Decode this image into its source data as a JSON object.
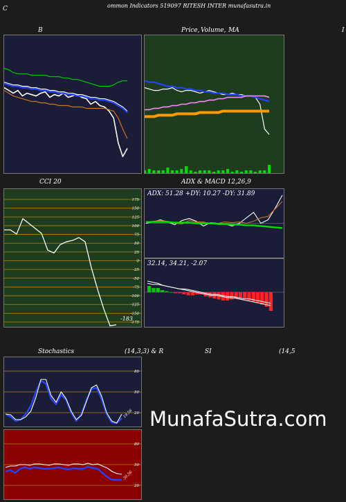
{
  "header": {
    "left_letter": "C",
    "title": "ommon  Indicators 519097 RITESH INTER munafasutra.in"
  },
  "labels": {
    "bb": "B",
    "price": "Price,",
    "volume": "Volume,",
    "ma": "MA",
    "edge": "I",
    "cci": "CCI 20",
    "adx_macd": "ADX  & MACD 12,26,9",
    "stoch": "Stochastics",
    "stoch_params": "(14,3,3) & R",
    "rsi": "SI",
    "rsi_params": "(14,5"
  },
  "adx_readout": "ADX: 51.28  +DY: 10.27 -DY: 31.89",
  "macd_readout": "32.14,  34.21,  -2.07",
  "watermark": "MunafaSutra.com",
  "colors": {
    "bg": "#1c1c1c",
    "navy": "#1a1c38",
    "green_panel": "#1e3c1e",
    "red_panel": "#8b0000",
    "grid": "#b8860b"
  },
  "chart_data": [
    {
      "id": "bollinger",
      "type": "line",
      "title": "B",
      "series": [
        {
          "color": "#ffffff",
          "values": [
            0.62,
            0.6,
            0.58,
            0.6,
            0.56,
            0.58,
            0.57,
            0.56,
            0.58,
            0.59,
            0.55,
            0.57,
            0.56,
            0.58,
            0.55,
            0.56,
            0.57,
            0.55,
            0.54,
            0.5,
            0.52,
            0.49,
            0.48,
            0.45,
            0.4,
            0.22,
            0.12,
            0.18
          ]
        },
        {
          "color": "#00cc00",
          "values": [
            0.76,
            0.75,
            0.73,
            0.72,
            0.72,
            0.72,
            0.71,
            0.71,
            0.71,
            0.71,
            0.7,
            0.7,
            0.7,
            0.69,
            0.69,
            0.68,
            0.68,
            0.67,
            0.66,
            0.65,
            0.64,
            0.63,
            0.63,
            0.63,
            0.64,
            0.66,
            0.67,
            0.67
          ]
        },
        {
          "color": "#ffffff",
          "values": [
            0.66,
            0.65,
            0.64,
            0.64,
            0.63,
            0.63,
            0.62,
            0.62,
            0.61,
            0.61,
            0.6,
            0.6,
            0.59,
            0.59,
            0.58,
            0.58,
            0.57,
            0.57,
            0.56,
            0.55,
            0.55,
            0.54,
            0.54,
            0.53,
            0.52,
            0.5,
            0.48,
            0.45
          ]
        },
        {
          "color": "#2244ff",
          "values": [
            0.65,
            0.64,
            0.63,
            0.63,
            0.62,
            0.62,
            0.61,
            0.61,
            0.6,
            0.6,
            0.59,
            0.59,
            0.58,
            0.58,
            0.57,
            0.57,
            0.56,
            0.56,
            0.55,
            0.54,
            0.54,
            0.53,
            0.53,
            0.52,
            0.51,
            0.49,
            0.47,
            0.44
          ]
        },
        {
          "color": "#cc7722",
          "values": [
            0.6,
            0.58,
            0.56,
            0.55,
            0.54,
            0.53,
            0.52,
            0.52,
            0.51,
            0.51,
            0.5,
            0.5,
            0.49,
            0.49,
            0.49,
            0.48,
            0.48,
            0.48,
            0.47,
            0.47,
            0.47,
            0.47,
            0.47,
            0.46,
            0.45,
            0.4,
            0.32,
            0.25
          ]
        }
      ]
    },
    {
      "id": "price_ma",
      "type": "line",
      "title": "Price, Volume, MA",
      "series": [
        {
          "color": "#ffffff",
          "values": [
            0.62,
            0.61,
            0.6,
            0.6,
            0.61,
            0.61,
            0.62,
            0.6,
            0.59,
            0.6,
            0.6,
            0.59,
            0.58,
            0.59,
            0.6,
            0.59,
            0.58,
            0.57,
            0.57,
            0.58,
            0.57,
            0.57,
            0.56,
            0.56,
            0.55,
            0.5,
            0.32,
            0.28
          ]
        },
        {
          "color": "#2244ff",
          "values": [
            0.67,
            0.66,
            0.66,
            0.65,
            0.64,
            0.63,
            0.63,
            0.62,
            0.62,
            0.61,
            0.61,
            0.6,
            0.6,
            0.59,
            0.59,
            0.58,
            0.58,
            0.58,
            0.57,
            0.57,
            0.57,
            0.56,
            0.56,
            0.56,
            0.55,
            0.54,
            0.53,
            0.52
          ]
        },
        {
          "color": "#ff88ff",
          "values": [
            0.46,
            0.46,
            0.47,
            0.47,
            0.48,
            0.48,
            0.49,
            0.49,
            0.5,
            0.5,
            0.51,
            0.51,
            0.52,
            0.52,
            0.53,
            0.53,
            0.54,
            0.54,
            0.55,
            0.55,
            0.55,
            0.55,
            0.56,
            0.56,
            0.56,
            0.56,
            0.56,
            0.55
          ]
        },
        {
          "color": "#ff9900",
          "values": [
            0.41,
            0.41,
            0.41,
            0.42,
            0.42,
            0.42,
            0.42,
            0.43,
            0.43,
            0.43,
            0.43,
            0.43,
            0.44,
            0.44,
            0.44,
            0.44,
            0.44,
            0.45,
            0.45,
            0.45,
            0.45,
            0.45,
            0.45,
            0.45,
            0.45,
            0.45,
            0.45,
            0.45
          ]
        }
      ],
      "volume": [
        0.02,
        0.03,
        0.02,
        0.02,
        0.02,
        0.04,
        0.02,
        0.02,
        0.03,
        0.05,
        0.02,
        0.01,
        0.02,
        0.02,
        0.02,
        0.01,
        0.02,
        0.02,
        0.03,
        0.01,
        0.02,
        0.01,
        0.02,
        0.02,
        0.01,
        0.02,
        0.02,
        0.06
      ]
    },
    {
      "id": "cci",
      "type": "line",
      "title": "CCI 20",
      "ylim": [
        -175,
        175
      ],
      "yticks": [
        175,
        150,
        125,
        100,
        75,
        50,
        25,
        0,
        -25,
        -50,
        -75,
        -100,
        -125,
        -150,
        -175
      ],
      "values": [
        88,
        88,
        76,
        120,
        106,
        92,
        78,
        30,
        22,
        46,
        54,
        58,
        66,
        54,
        -20,
        -82,
        -138,
        -186,
        -183
      ],
      "last_label": "-183"
    },
    {
      "id": "adx",
      "type": "line",
      "title": "ADX",
      "readout": "ADX: 51.28  +DY: 10.27 -DY: 31.89",
      "series": [
        {
          "name": "ADX",
          "color": "#ffffff",
          "values": [
            50,
            52,
            55,
            52,
            48,
            54,
            57,
            53,
            46,
            51,
            50,
            49,
            46,
            50,
            58,
            66,
            50,
            55,
            72,
            91
          ]
        },
        {
          "name": "+DY",
          "color": "#cc7722",
          "values": [
            52,
            53,
            54,
            53,
            50,
            49,
            54,
            52,
            52,
            49,
            50,
            52,
            51,
            52,
            50,
            53,
            58,
            60,
            71,
            82
          ]
        },
        {
          "name": "-DY",
          "color": "#00dd00",
          "values": [
            52,
            52,
            52,
            52,
            51,
            51,
            51,
            50,
            50,
            50,
            49,
            49,
            48,
            48,
            47,
            47,
            46,
            45,
            44,
            43
          ]
        }
      ]
    },
    {
      "id": "macd",
      "type": "bar",
      "title": "MACD 12,26,9",
      "readout": "32.14,  34.21,  -2.07",
      "hist": [
        3,
        2,
        2,
        1,
        0.5,
        0,
        -0.5,
        -0.5,
        -1,
        -1.5,
        -1.5,
        -1,
        -1,
        -2,
        -2.5,
        -3,
        -3.5,
        -4,
        -4,
        -3.5,
        -3,
        -3,
        -3.5,
        -4,
        -4.5,
        -5,
        -6,
        -7,
        -9
      ],
      "lines": [
        {
          "color": "#ffffff",
          "values": [
            10,
            9,
            8,
            6,
            5,
            4,
            3,
            2,
            1,
            0,
            -1,
            -2,
            -3,
            -3,
            -4,
            -5,
            -5,
            -6,
            -7,
            -8,
            -9,
            -10,
            -11,
            -12
          ]
        },
        {
          "color": "#ffffff",
          "values": [
            8,
            7,
            7,
            6,
            5,
            4,
            3,
            3,
            2,
            1,
            0,
            -1,
            -2,
            -2,
            -3,
            -4,
            -4,
            -5,
            -6,
            -6,
            -7,
            -8,
            -9,
            -10
          ]
        }
      ]
    },
    {
      "id": "stochastics",
      "type": "line",
      "title": "Stochastics (14,3,3)",
      "yticks": [
        80,
        50,
        20
      ],
      "last_label": "19.56",
      "series": [
        {
          "color": "#ffffff",
          "values": [
            18,
            17,
            10,
            10,
            14,
            22,
            42,
            68,
            68,
            45,
            35,
            50,
            40,
            22,
            10,
            16,
            36,
            56,
            60,
            44,
            20,
            8,
            5,
            18
          ]
        },
        {
          "color": "#2244ff",
          "values": [
            18,
            14,
            8,
            10,
            18,
            30,
            50,
            66,
            62,
            40,
            32,
            46,
            38,
            20,
            8,
            18,
            38,
            54,
            56,
            40,
            18,
            6,
            5,
            12
          ]
        }
      ]
    },
    {
      "id": "rsi",
      "type": "line",
      "title": "RSI",
      "yticks": [
        80,
        50,
        20
      ],
      "last_label": "30.56",
      "series": [
        {
          "color": "#ffffff",
          "values": [
            46,
            48,
            48,
            50,
            50,
            49,
            51,
            51,
            50,
            49,
            51,
            51,
            50,
            49,
            51,
            51,
            50,
            52,
            50,
            51,
            48,
            45,
            40,
            37,
            36
          ]
        },
        {
          "color": "#2244ff",
          "values": [
            40,
            42,
            38,
            44,
            46,
            44,
            46,
            45,
            44,
            44,
            45,
            46,
            44,
            43,
            45,
            44,
            44,
            47,
            45,
            44,
            38,
            32,
            28,
            28,
            28
          ]
        }
      ]
    }
  ]
}
